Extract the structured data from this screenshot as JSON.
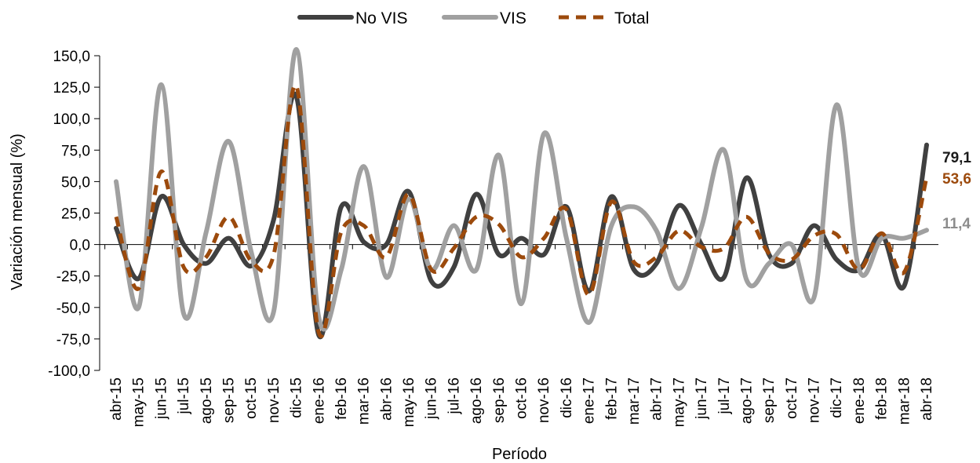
{
  "chart_data": {
    "type": "line",
    "title": "",
    "xlabel": "Período",
    "ylabel": "Variación mensual (%)",
    "ylim": [
      -100,
      150
    ],
    "yticks": [
      150,
      125,
      100,
      75,
      50,
      25,
      0,
      -25,
      -50,
      -75,
      -100
    ],
    "ytick_labels": [
      "150,0",
      "125,0",
      "100,0",
      "75,0",
      "50,0",
      "25,0",
      "0,0",
      "-25,0",
      "-50,0",
      "-75,0",
      "-100,0"
    ],
    "categories": [
      "abr-15",
      "may-15",
      "jun-15",
      "jul-15",
      "ago-15",
      "sep-15",
      "oct-15",
      "nov-15",
      "dic-15",
      "ene-16",
      "feb-16",
      "mar-16",
      "abr-16",
      "may-16",
      "jun-16",
      "jul-16",
      "ago-16",
      "sep-16",
      "oct-16",
      "nov-16",
      "dic-16",
      "ene-17",
      "feb-17",
      "mar-17",
      "abr-17",
      "may-17",
      "jun-17",
      "jul-17",
      "ago-17",
      "sep-17",
      "oct-17",
      "nov-17",
      "dic-17",
      "ene-18",
      "feb-18",
      "mar-18",
      "abr-18"
    ],
    "grid": false,
    "legend_position": "top-center",
    "series": [
      {
        "name": "No VIS",
        "color": "#404040",
        "dash": "solid",
        "values": [
          13,
          -27,
          38,
          0,
          -15,
          5,
          -17,
          20,
          118,
          -72,
          30,
          2,
          0,
          42,
          -29,
          -18,
          40,
          -8,
          5,
          -8,
          30,
          -37,
          38,
          -20,
          -15,
          31,
          0,
          -26,
          53,
          -8,
          -15,
          15,
          -12,
          -20,
          8,
          -33,
          79.1
        ]
      },
      {
        "name": "VIS",
        "color": "#a0a0a0",
        "dash": "solid",
        "values": [
          50,
          -50,
          127,
          -55,
          10,
          82,
          -6,
          -53,
          155,
          -58,
          -20,
          62,
          -26,
          36,
          -20,
          15,
          -20,
          71,
          -47,
          88,
          5,
          -62,
          15,
          30,
          11,
          -35,
          14,
          75,
          -28,
          -15,
          0,
          -42,
          111,
          -20,
          5,
          5,
          11.4
        ]
      },
      {
        "name": "Total",
        "color": "#9c4a0c",
        "dash": "dashed",
        "values": [
          22,
          -35,
          58,
          -18,
          -10,
          22,
          -13,
          -8,
          126,
          -70,
          10,
          15,
          -10,
          40,
          -20,
          -3,
          22,
          16,
          -10,
          5,
          28,
          -40,
          34,
          -14,
          -10,
          11,
          -2,
          -3,
          22,
          -7,
          -12,
          7,
          8,
          -20,
          9,
          -22,
          53.6
        ]
      }
    ],
    "end_labels": [
      {
        "series": "No VIS",
        "text": "79,1",
        "color": "#1a1a1a"
      },
      {
        "series": "Total",
        "text": "53,6",
        "color": "#9c4a0c"
      },
      {
        "series": "VIS",
        "text": "11,4",
        "color": "#8c8c8c"
      }
    ]
  }
}
